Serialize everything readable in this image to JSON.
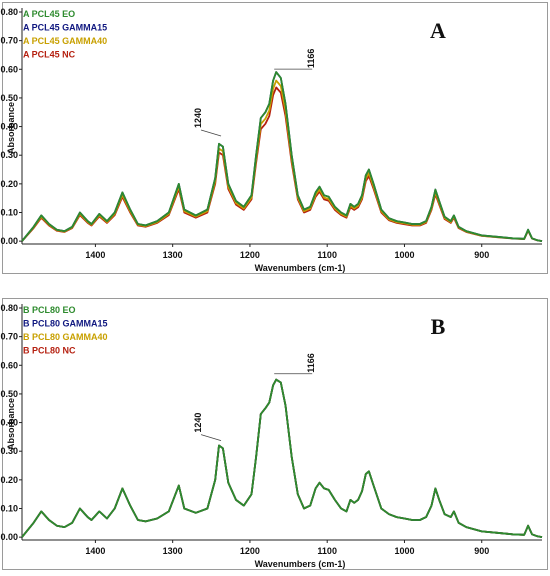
{
  "chart_data": [
    {
      "type": "line",
      "panel_label": "A",
      "xlabel": "Wavenumbers (cm‑1)",
      "ylabel": "Absorbance",
      "xlim": [
        1495,
        822
      ],
      "ylim": [
        -0.01,
        0.8
      ],
      "x_ticks": [
        1400,
        1300,
        1200,
        1100,
        1000,
        900
      ],
      "y_ticks": [
        "0.00",
        "0.10",
        "0.20",
        "0.30",
        "0.40",
        "0.50",
        "0.60",
        "0.70",
        "0.80"
      ],
      "grid": false,
      "legend_position": "top-left",
      "annotations": [
        {
          "text": "1240",
          "x": 1240,
          "y": 0.36
        },
        {
          "text": "1166",
          "x": 1166,
          "y": 0.59
        }
      ],
      "series": [
        {
          "name": "A PCL45 EO",
          "color": "#2e8b2e",
          "scale": 1.0,
          "x": [
            1495,
            1480,
            1470,
            1460,
            1450,
            1440,
            1430,
            1420,
            1410,
            1405,
            1395,
            1385,
            1375,
            1365,
            1355,
            1345,
            1335,
            1320,
            1305,
            1292,
            1285,
            1270,
            1255,
            1245,
            1240,
            1235,
            1228,
            1218,
            1208,
            1198,
            1192,
            1186,
            1180,
            1175,
            1170,
            1166,
            1160,
            1154,
            1146,
            1138,
            1130,
            1122,
            1115,
            1110,
            1104,
            1098,
            1090,
            1082,
            1075,
            1070,
            1065,
            1060,
            1055,
            1050,
            1046,
            1040,
            1030,
            1020,
            1010,
            1000,
            990,
            980,
            972,
            965,
            960,
            955,
            948,
            940,
            936,
            930,
            920,
            900,
            880,
            860,
            845,
            840,
            835,
            828,
            822
          ],
          "y": [
            0.0,
            0.05,
            0.09,
            0.06,
            0.04,
            0.035,
            0.05,
            0.1,
            0.07,
            0.06,
            0.095,
            0.07,
            0.1,
            0.17,
            0.11,
            0.06,
            0.055,
            0.07,
            0.1,
            0.2,
            0.11,
            0.09,
            0.11,
            0.22,
            0.34,
            0.33,
            0.2,
            0.14,
            0.12,
            0.16,
            0.3,
            0.43,
            0.45,
            0.48,
            0.56,
            0.59,
            0.57,
            0.48,
            0.3,
            0.16,
            0.11,
            0.12,
            0.17,
            0.19,
            0.16,
            0.155,
            0.12,
            0.1,
            0.09,
            0.13,
            0.12,
            0.13,
            0.16,
            0.23,
            0.25,
            0.2,
            0.11,
            0.08,
            0.07,
            0.065,
            0.06,
            0.06,
            0.07,
            0.12,
            0.18,
            0.14,
            0.085,
            0.07,
            0.09,
            0.05,
            0.035,
            0.02,
            0.015,
            0.01,
            0.008,
            0.04,
            0.01,
            0.003,
            0.0
          ]
        },
        {
          "name": "A PCL45 GAMMA15",
          "color": "#101880",
          "scale": 1.0
        },
        {
          "name": "A PCL45 GAMMA40",
          "color": "#c8a000",
          "scale": 0.95
        },
        {
          "name": "A PCL45 NC",
          "color": "#b52010",
          "scale": 0.91
        }
      ]
    },
    {
      "type": "line",
      "panel_label": "B",
      "xlabel": "Wavenumbers (cm‑1)",
      "ylabel": "Absorbance",
      "xlim": [
        1495,
        822
      ],
      "ylim": [
        -0.01,
        0.8
      ],
      "x_ticks": [
        1400,
        1300,
        1200,
        1100,
        1000,
        900
      ],
      "y_ticks": [
        "0.00",
        "0.10",
        "0.20",
        "0.30",
        "0.40",
        "0.50",
        "0.60",
        "0.70",
        "0.80"
      ],
      "grid": false,
      "legend_position": "top-left",
      "annotations": [
        {
          "text": "1240",
          "x": 1240,
          "y": 0.33
        },
        {
          "text": "1166",
          "x": 1166,
          "y": 0.56
        }
      ],
      "series": [
        {
          "name": "B PCL80 EO",
          "color": "#2e8b2e",
          "scale": 1.0,
          "x": [
            1495,
            1480,
            1470,
            1460,
            1450,
            1440,
            1430,
            1420,
            1410,
            1405,
            1395,
            1385,
            1375,
            1365,
            1355,
            1345,
            1335,
            1320,
            1305,
            1292,
            1285,
            1270,
            1255,
            1245,
            1240,
            1235,
            1228,
            1218,
            1208,
            1198,
            1192,
            1186,
            1180,
            1175,
            1170,
            1166,
            1160,
            1154,
            1146,
            1138,
            1130,
            1122,
            1115,
            1110,
            1104,
            1098,
            1090,
            1082,
            1075,
            1070,
            1065,
            1060,
            1055,
            1050,
            1046,
            1040,
            1030,
            1020,
            1010,
            1000,
            990,
            980,
            972,
            965,
            960,
            955,
            948,
            940,
            936,
            930,
            920,
            900,
            880,
            860,
            845,
            840,
            835,
            828,
            822
          ],
          "y": [
            0.0,
            0.05,
            0.09,
            0.06,
            0.04,
            0.035,
            0.05,
            0.1,
            0.07,
            0.06,
            0.09,
            0.065,
            0.1,
            0.17,
            0.11,
            0.06,
            0.055,
            0.065,
            0.09,
            0.18,
            0.1,
            0.085,
            0.1,
            0.2,
            0.32,
            0.31,
            0.19,
            0.13,
            0.11,
            0.15,
            0.28,
            0.43,
            0.45,
            0.47,
            0.53,
            0.55,
            0.54,
            0.46,
            0.28,
            0.15,
            0.1,
            0.11,
            0.17,
            0.19,
            0.17,
            0.165,
            0.13,
            0.1,
            0.09,
            0.13,
            0.12,
            0.13,
            0.16,
            0.22,
            0.23,
            0.18,
            0.1,
            0.08,
            0.07,
            0.065,
            0.06,
            0.06,
            0.07,
            0.11,
            0.17,
            0.13,
            0.08,
            0.07,
            0.09,
            0.05,
            0.035,
            0.02,
            0.015,
            0.01,
            0.008,
            0.04,
            0.01,
            0.003,
            0.0
          ]
        },
        {
          "name": "B PCL80 GAMMA15",
          "color": "#101880",
          "scale": 1.0
        },
        {
          "name": "B PCL80 GAMMA40",
          "color": "#c8a000",
          "scale": 1.0
        },
        {
          "name": "B PCL80 NC",
          "color": "#b52010",
          "scale": 1.0
        }
      ]
    }
  ]
}
